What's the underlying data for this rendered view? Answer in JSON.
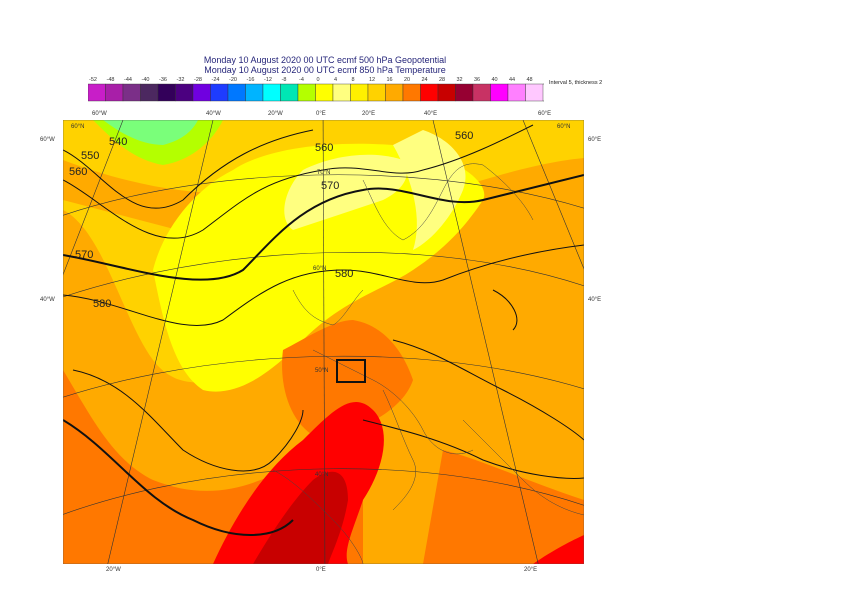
{
  "titles": {
    "line1": "Monday 10 August 2020 00 UTC ecmf 500 hPa  Geopotential",
    "line2": "Monday 10 August 2020 00 UTC ecmf 850 hPa  Temperature"
  },
  "legend": {
    "interval_note": "Interval 5, thickness 2",
    "ticks": [
      "-52",
      "-48",
      "-44",
      "-40",
      "-36",
      "-32",
      "-28",
      "-24",
      "-20",
      "-16",
      "-12",
      "-8",
      "-4",
      "0",
      "4",
      "8",
      "12",
      "16",
      "20",
      "24",
      "28",
      "32",
      "36",
      "40",
      "44",
      "48"
    ],
    "colors": [
      "#c81ec8",
      "#a81fa8",
      "#7b2f88",
      "#4c2860",
      "#33005a",
      "#4b0080",
      "#7000e0",
      "#1e3cff",
      "#0078ff",
      "#00b4ff",
      "#00ffff",
      "#00e6b4",
      "#b4ff00",
      "#ffff00",
      "#ffff80",
      "#fff000",
      "#ffd200",
      "#ffaa00",
      "#ff7800",
      "#ff0000",
      "#c80000",
      "#960032",
      "#c83264",
      "#ff00ff",
      "#ff80ff",
      "#ffc8ff"
    ]
  },
  "map_labels": {
    "lon_top": [
      "60°W",
      "40°W",
      "20°W",
      "0°E",
      "20°E",
      "40°E",
      "60°E"
    ],
    "lon_bottom": [
      "20°W",
      "0°E",
      "20°E"
    ],
    "lat_left": [
      "60°W",
      "40°W"
    ],
    "lat_right": [
      "60°E",
      "40°E"
    ],
    "corner_left": "60°N",
    "corner_right": "60°N",
    "lat_inner": [
      "70°N",
      "60°N",
      "50°N",
      "40°N"
    ],
    "contours": [
      "540",
      "550",
      "560",
      "560",
      "570",
      "570",
      "580",
      "580",
      "560"
    ]
  },
  "colors": {
    "orange_bg": "#ffaa00",
    "light_orange": "#ffd200",
    "yellow": "#ffff00",
    "pale_yellow": "#ffff80",
    "red": "#ff0000",
    "dark_red": "#c80000",
    "lime": "#b4ff00",
    "dark_orange": "#ff7800"
  }
}
